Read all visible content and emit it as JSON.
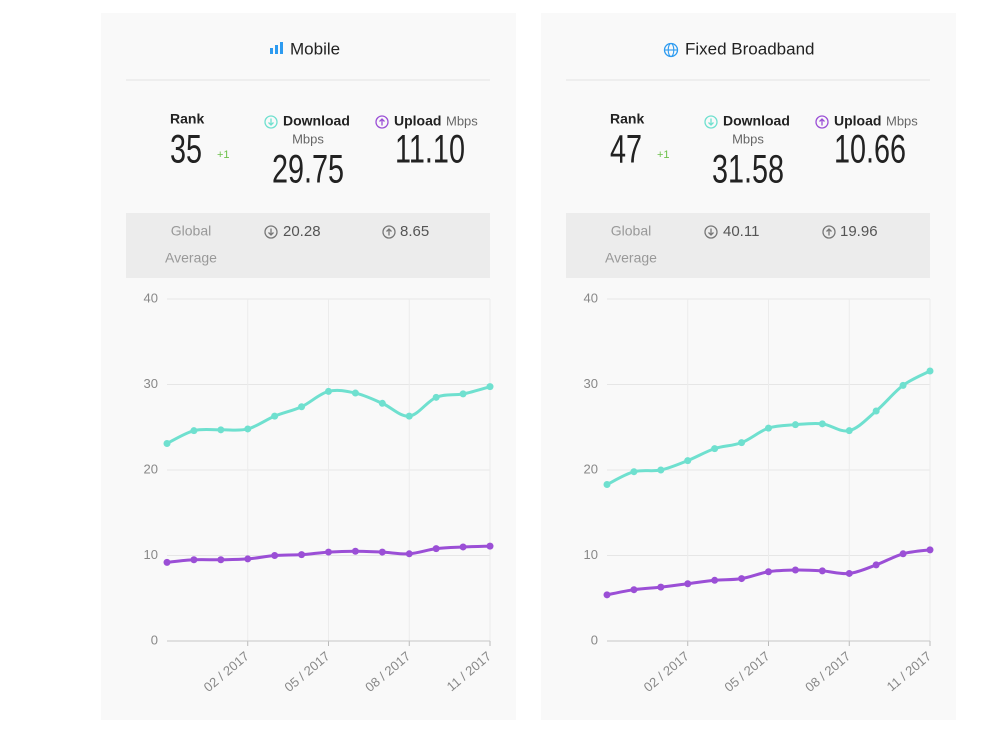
{
  "panels": [
    {
      "title": "Mobile",
      "rank_label": "Rank",
      "rank": "35",
      "rank_change": "+1",
      "download_label": "Download",
      "download_unit": "Mbps",
      "download": "29.75",
      "upload_label": "Upload",
      "upload_unit": "Mbps",
      "upload": "11.10",
      "global_label": "Global",
      "average_label": "Average",
      "global_download": "20.28",
      "global_upload": "8.65"
    },
    {
      "title": "Fixed Broadband",
      "rank_label": "Rank",
      "rank": "47",
      "rank_change": "+1",
      "download_label": "Download",
      "download_unit": "Mbps",
      "download": "31.58",
      "upload_label": "Upload",
      "upload_unit": "Mbps",
      "upload": "10.66",
      "global_label": "Global",
      "average_label": "Average",
      "global_download": "40.11",
      "global_upload": "19.96"
    }
  ],
  "chart_data": [
    {
      "type": "line",
      "categories": [
        null,
        null,
        null,
        "02 / 2017",
        null,
        null,
        "05 / 2017",
        null,
        null,
        "08 / 2017",
        null,
        null,
        "11 / 2017"
      ],
      "series": [
        {
          "color": "#6fe0cf",
          "values": [
            23.1,
            24.6,
            24.7,
            24.8,
            26.3,
            27.4,
            29.2,
            29.0,
            27.8,
            26.3,
            28.5,
            28.9,
            29.75
          ]
        },
        {
          "color": "#9b4fd6",
          "values": [
            9.2,
            9.5,
            9.5,
            9.6,
            10.0,
            10.1,
            10.4,
            10.5,
            10.4,
            10.2,
            10.8,
            11.0,
            11.1
          ]
        }
      ],
      "ylim": [
        0,
        40
      ],
      "yticks": [
        0,
        10,
        20,
        30,
        40
      ],
      "grid": true
    },
    {
      "type": "line",
      "categories": [
        null,
        null,
        null,
        "02 / 2017",
        null,
        null,
        "05 / 2017",
        null,
        null,
        "08 / 2017",
        null,
        null,
        "11 / 2017"
      ],
      "series": [
        {
          "color": "#6fe0cf",
          "values": [
            18.3,
            19.8,
            20.0,
            21.1,
            22.5,
            23.2,
            24.9,
            25.3,
            25.4,
            24.6,
            26.9,
            29.9,
            31.58
          ]
        },
        {
          "color": "#9b4fd6",
          "values": [
            5.4,
            6.0,
            6.3,
            6.7,
            7.1,
            7.3,
            8.1,
            8.3,
            8.2,
            7.9,
            8.9,
            10.2,
            10.66
          ]
        }
      ],
      "ylim": [
        0,
        40
      ],
      "yticks": [
        0,
        10,
        20,
        30,
        40
      ],
      "grid": true
    }
  ]
}
